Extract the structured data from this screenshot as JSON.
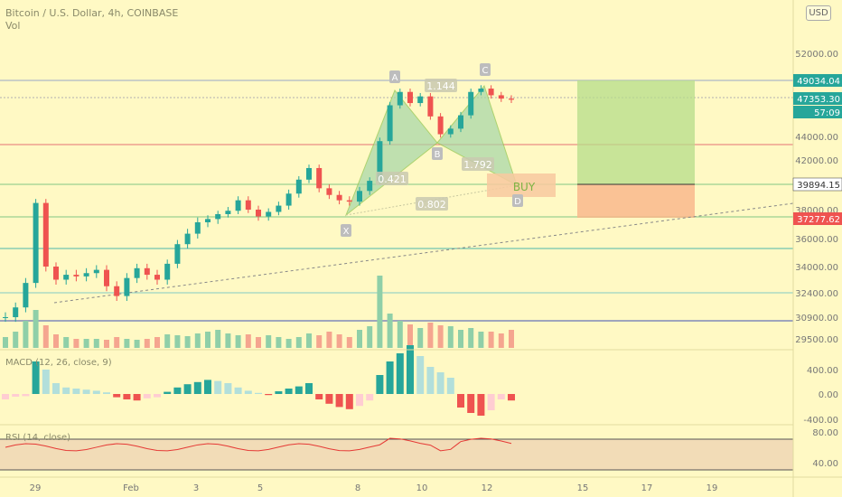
{
  "header": {
    "title": "Bitcoin / U.S. Dollar, 4h, COINBASE",
    "vol_label": "Vol",
    "currency_button": "USD"
  },
  "colors": {
    "up": "#26a69a",
    "down": "#ef5350",
    "vol_up": "#8fcfa8",
    "vol_down": "#f5a58f",
    "bg": "#fff9c4"
  },
  "price_axis": {
    "ticks": [
      "52000.00",
      "44000.00",
      "42000.00",
      "38000.00",
      "36000.00",
      "34000.00",
      "32400.00",
      "30900.00",
      "29500.00"
    ],
    "badges": {
      "high": "49034.04",
      "last": "47353.30",
      "countdown": "57:09",
      "entry": "39894.15",
      "stop": "37277.62"
    }
  },
  "x_axis": {
    "ticks": [
      "29",
      "Feb",
      "3",
      "5",
      "8",
      "10",
      "12",
      "15",
      "17",
      "19"
    ]
  },
  "harmonic": {
    "points": [
      "X",
      "A",
      "B",
      "C",
      "D"
    ],
    "ratios": {
      "xb": "0.421",
      "ab": "1.144",
      "bc": "1.792",
      "xd": "0.802"
    },
    "signal": "BUY"
  },
  "macd": {
    "label": "MACD (12, 26, close, 9)",
    "ticks": [
      "400.00",
      "0.00",
      "-400.00"
    ]
  },
  "rsi": {
    "label": "RSI (14, close)",
    "ticks": [
      "80.00",
      "40.00"
    ]
  },
  "chart_data": {
    "type": "candlestick",
    "symbol": "BTCUSD",
    "interval": "4h",
    "exchange": "COINBASE",
    "price_levels": [
      49034.04,
      47353.3,
      43500,
      39894.15,
      37277.62,
      35400,
      32400,
      30900
    ],
    "close_approx": [
      30900,
      31500,
      33000,
      38500,
      34000,
      33200,
      33500,
      33400,
      33600,
      33800,
      32800,
      32200,
      33300,
      33900,
      33500,
      33200,
      34200,
      35600,
      36300,
      37000,
      37200,
      37600,
      37900,
      38700,
      38000,
      37400,
      37800,
      38300,
      39200,
      40300,
      41300,
      39600,
      39100,
      38700,
      38600,
      39400,
      40200,
      43600,
      46800,
      48000,
      47000,
      47600,
      45800,
      44200,
      44700,
      45900,
      48000,
      48300,
      47700,
      47400,
      47300
    ],
    "ylim": [
      29000,
      53000
    ]
  }
}
